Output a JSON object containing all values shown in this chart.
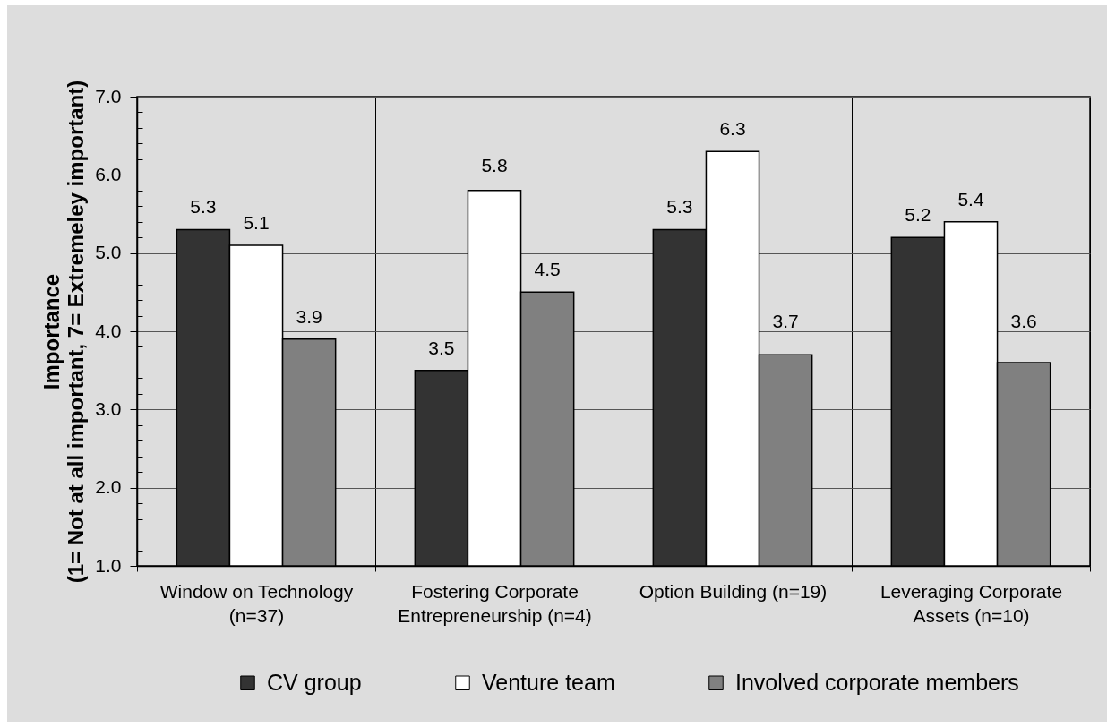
{
  "chart_data": {
    "type": "bar",
    "ylabel": "Importance (1= Not at all important, 7= Extremeley important)",
    "categories": [
      "Window on Technology (n=37)",
      "Fostering Corporate Entrepreneurship (n=4)",
      "Option Building (n=19)",
      "Leveraging Corporate Assets (n=10)"
    ],
    "series": [
      {
        "name": "CV group",
        "color": "#333333",
        "values": [
          5.3,
          3.5,
          5.3,
          5.2
        ]
      },
      {
        "name": "Venture team",
        "color": "#ffffff",
        "values": [
          5.1,
          5.8,
          6.3,
          5.4
        ]
      },
      {
        "name": "Involved corporate members",
        "color": "#808080",
        "values": [
          3.9,
          4.5,
          3.7,
          3.6
        ]
      }
    ],
    "ylim": [
      1,
      7
    ],
    "yticks": [
      {
        "value": 1,
        "label": "1.0"
      },
      {
        "value": 1.2,
        "label": null
      },
      {
        "value": 1.4,
        "label": null
      },
      {
        "value": 1.6,
        "label": null
      },
      {
        "value": 1.8,
        "label": null
      },
      {
        "value": 2,
        "label": "2.0"
      },
      {
        "value": 2.2,
        "label": null
      },
      {
        "value": 2.4,
        "label": null
      },
      {
        "value": 2.6,
        "label": null
      },
      {
        "value": 2.8,
        "label": null
      },
      {
        "value": 3,
        "label": "3.0"
      },
      {
        "value": 3.2,
        "label": null
      },
      {
        "value": 3.4,
        "label": null
      },
      {
        "value": 3.6,
        "label": null
      },
      {
        "value": 3.8,
        "label": null
      },
      {
        "value": 4,
        "label": "4.0"
      },
      {
        "value": 4.2,
        "label": null
      },
      {
        "value": 4.4,
        "label": null
      },
      {
        "value": 4.6,
        "label": null
      },
      {
        "value": 4.8,
        "label": null
      },
      {
        "value": 5,
        "label": "5.0"
      },
      {
        "value": 5.2,
        "label": null
      },
      {
        "value": 5.4,
        "label": null
      },
      {
        "value": 5.6,
        "label": null
      },
      {
        "value": 5.8,
        "label": null
      },
      {
        "value": 6,
        "label": "6.0"
      },
      {
        "value": 6.2,
        "label": null
      },
      {
        "value": 6.4,
        "label": null
      },
      {
        "value": 6.6,
        "label": null
      },
      {
        "value": 6.8,
        "label": null
      },
      {
        "value": 7,
        "label": "7.0"
      }
    ],
    "grid": true,
    "legend": "bottom",
    "data_labels": true
  }
}
